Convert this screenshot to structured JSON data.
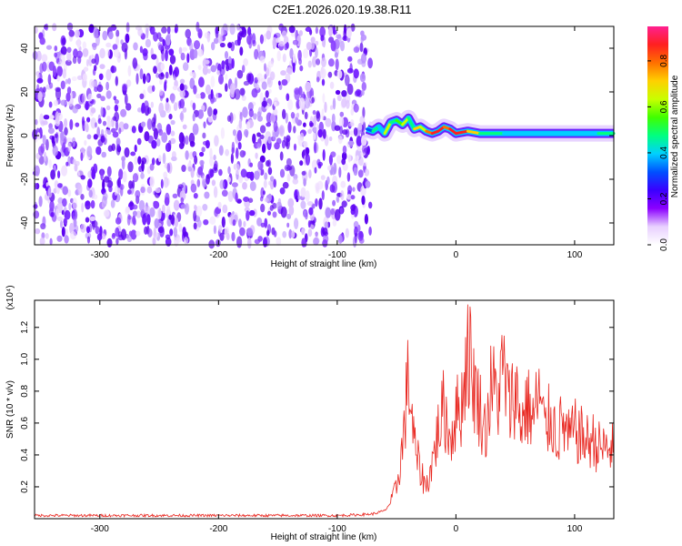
{
  "title": "C2E1.2026.020.19.38.R11",
  "colorbar": {
    "label": "Normalized spectral amplitude",
    "ticks": [
      "0.0",
      "0.2",
      "0.4",
      "0.6",
      "0.8"
    ],
    "tick_values": [
      0.0,
      0.2,
      0.4,
      0.6,
      0.8
    ],
    "range": [
      0,
      0.95
    ],
    "colors": [
      "#ffffff",
      "#e8d0ff",
      "#8b00ff",
      "#3a00ff",
      "#0050ff",
      "#00d0ff",
      "#00ff80",
      "#40ff00",
      "#c8ff00",
      "#ffd000",
      "#ff7000",
      "#ff2020",
      "#ff2090"
    ]
  },
  "chart_data": [
    {
      "type": "heatmap",
      "title": "C2E1.2026.020.19.38.R11",
      "xlabel": "Height of straight line (km)",
      "ylabel": "Frequency (Hz)",
      "xlim": [
        -355,
        133
      ],
      "ylim": [
        -50,
        50
      ],
      "x_ticks": [
        -300,
        -200,
        -100,
        0,
        100
      ],
      "y_ticks": [
        -40,
        -20,
        0,
        20,
        40
      ],
      "x_tick_labels": [
        "-300",
        "-200",
        "-100",
        "0",
        "100"
      ],
      "y_tick_labels": [
        "-40",
        "-20",
        "0",
        "20",
        "40"
      ],
      "noise_region_x": [
        -355,
        -72
      ],
      "signal_ridge": {
        "x": [
          -75,
          -70,
          -65,
          -60,
          -55,
          -50,
          -45,
          -40,
          -35,
          -30,
          -25,
          -20,
          -15,
          -10,
          -5,
          0,
          10,
          20,
          40,
          60,
          80,
          100,
          120,
          133
        ],
        "y": [
          3,
          2,
          4,
          1,
          6,
          7,
          5,
          8,
          3,
          4,
          2,
          1,
          2,
          4,
          3,
          1,
          2,
          1,
          1,
          1,
          1,
          1,
          1,
          1
        ],
        "amplitude": [
          0.3,
          0.5,
          0.4,
          0.6,
          0.5,
          0.55,
          0.6,
          0.5,
          0.7,
          0.6,
          0.8,
          0.9,
          0.85,
          0.8,
          0.9,
          0.85,
          0.7,
          0.45,
          0.4,
          0.4,
          0.4,
          0.4,
          0.45,
          0.4
        ]
      }
    },
    {
      "type": "line",
      "xlabel": "Height of straight line (km)",
      "ylabel": "SNR (10 * v/v)",
      "y_multiplier": "(x10⁴)",
      "xlim": [
        -355,
        133
      ],
      "ylim": [
        0,
        1.37
      ],
      "x_ticks": [
        -300,
        -200,
        -100,
        0,
        100
      ],
      "y_ticks": [
        0.2,
        0.4,
        0.6,
        0.8,
        1.0,
        1.2
      ],
      "x_tick_labels": [
        "-300",
        "-200",
        "-100",
        "0",
        "100"
      ],
      "y_tick_labels": [
        "0.2",
        "0.4",
        "0.6",
        "0.8",
        "1.0",
        "1.2"
      ],
      "color": "#e8251e",
      "series": [
        {
          "x": [
            -355,
            -300,
            -250,
            -200,
            -150,
            -100,
            -80,
            -70,
            -60,
            -55,
            -50,
            -45,
            -40,
            -35,
            -30,
            -25,
            -20,
            -15,
            -10,
            -5,
            0,
            5,
            10,
            15,
            20,
            25,
            30,
            35,
            40,
            45,
            50,
            55,
            60,
            65,
            70,
            75,
            80,
            85,
            90,
            95,
            100,
            105,
            110,
            115,
            120,
            125,
            133
          ],
          "y": [
            0.02,
            0.02,
            0.02,
            0.02,
            0.02,
            0.02,
            0.025,
            0.03,
            0.05,
            0.1,
            0.2,
            0.45,
            0.9,
            0.45,
            0.3,
            0.2,
            0.35,
            0.55,
            0.7,
            0.5,
            0.65,
            0.72,
            1.1,
            0.85,
            0.7,
            0.55,
            0.85,
            0.75,
            0.95,
            0.7,
            0.82,
            0.6,
            0.72,
            0.62,
            0.78,
            0.55,
            0.65,
            0.52,
            0.6,
            0.5,
            0.55,
            0.52,
            0.48,
            0.5,
            0.45,
            0.44,
            0.44
          ]
        }
      ]
    }
  ]
}
